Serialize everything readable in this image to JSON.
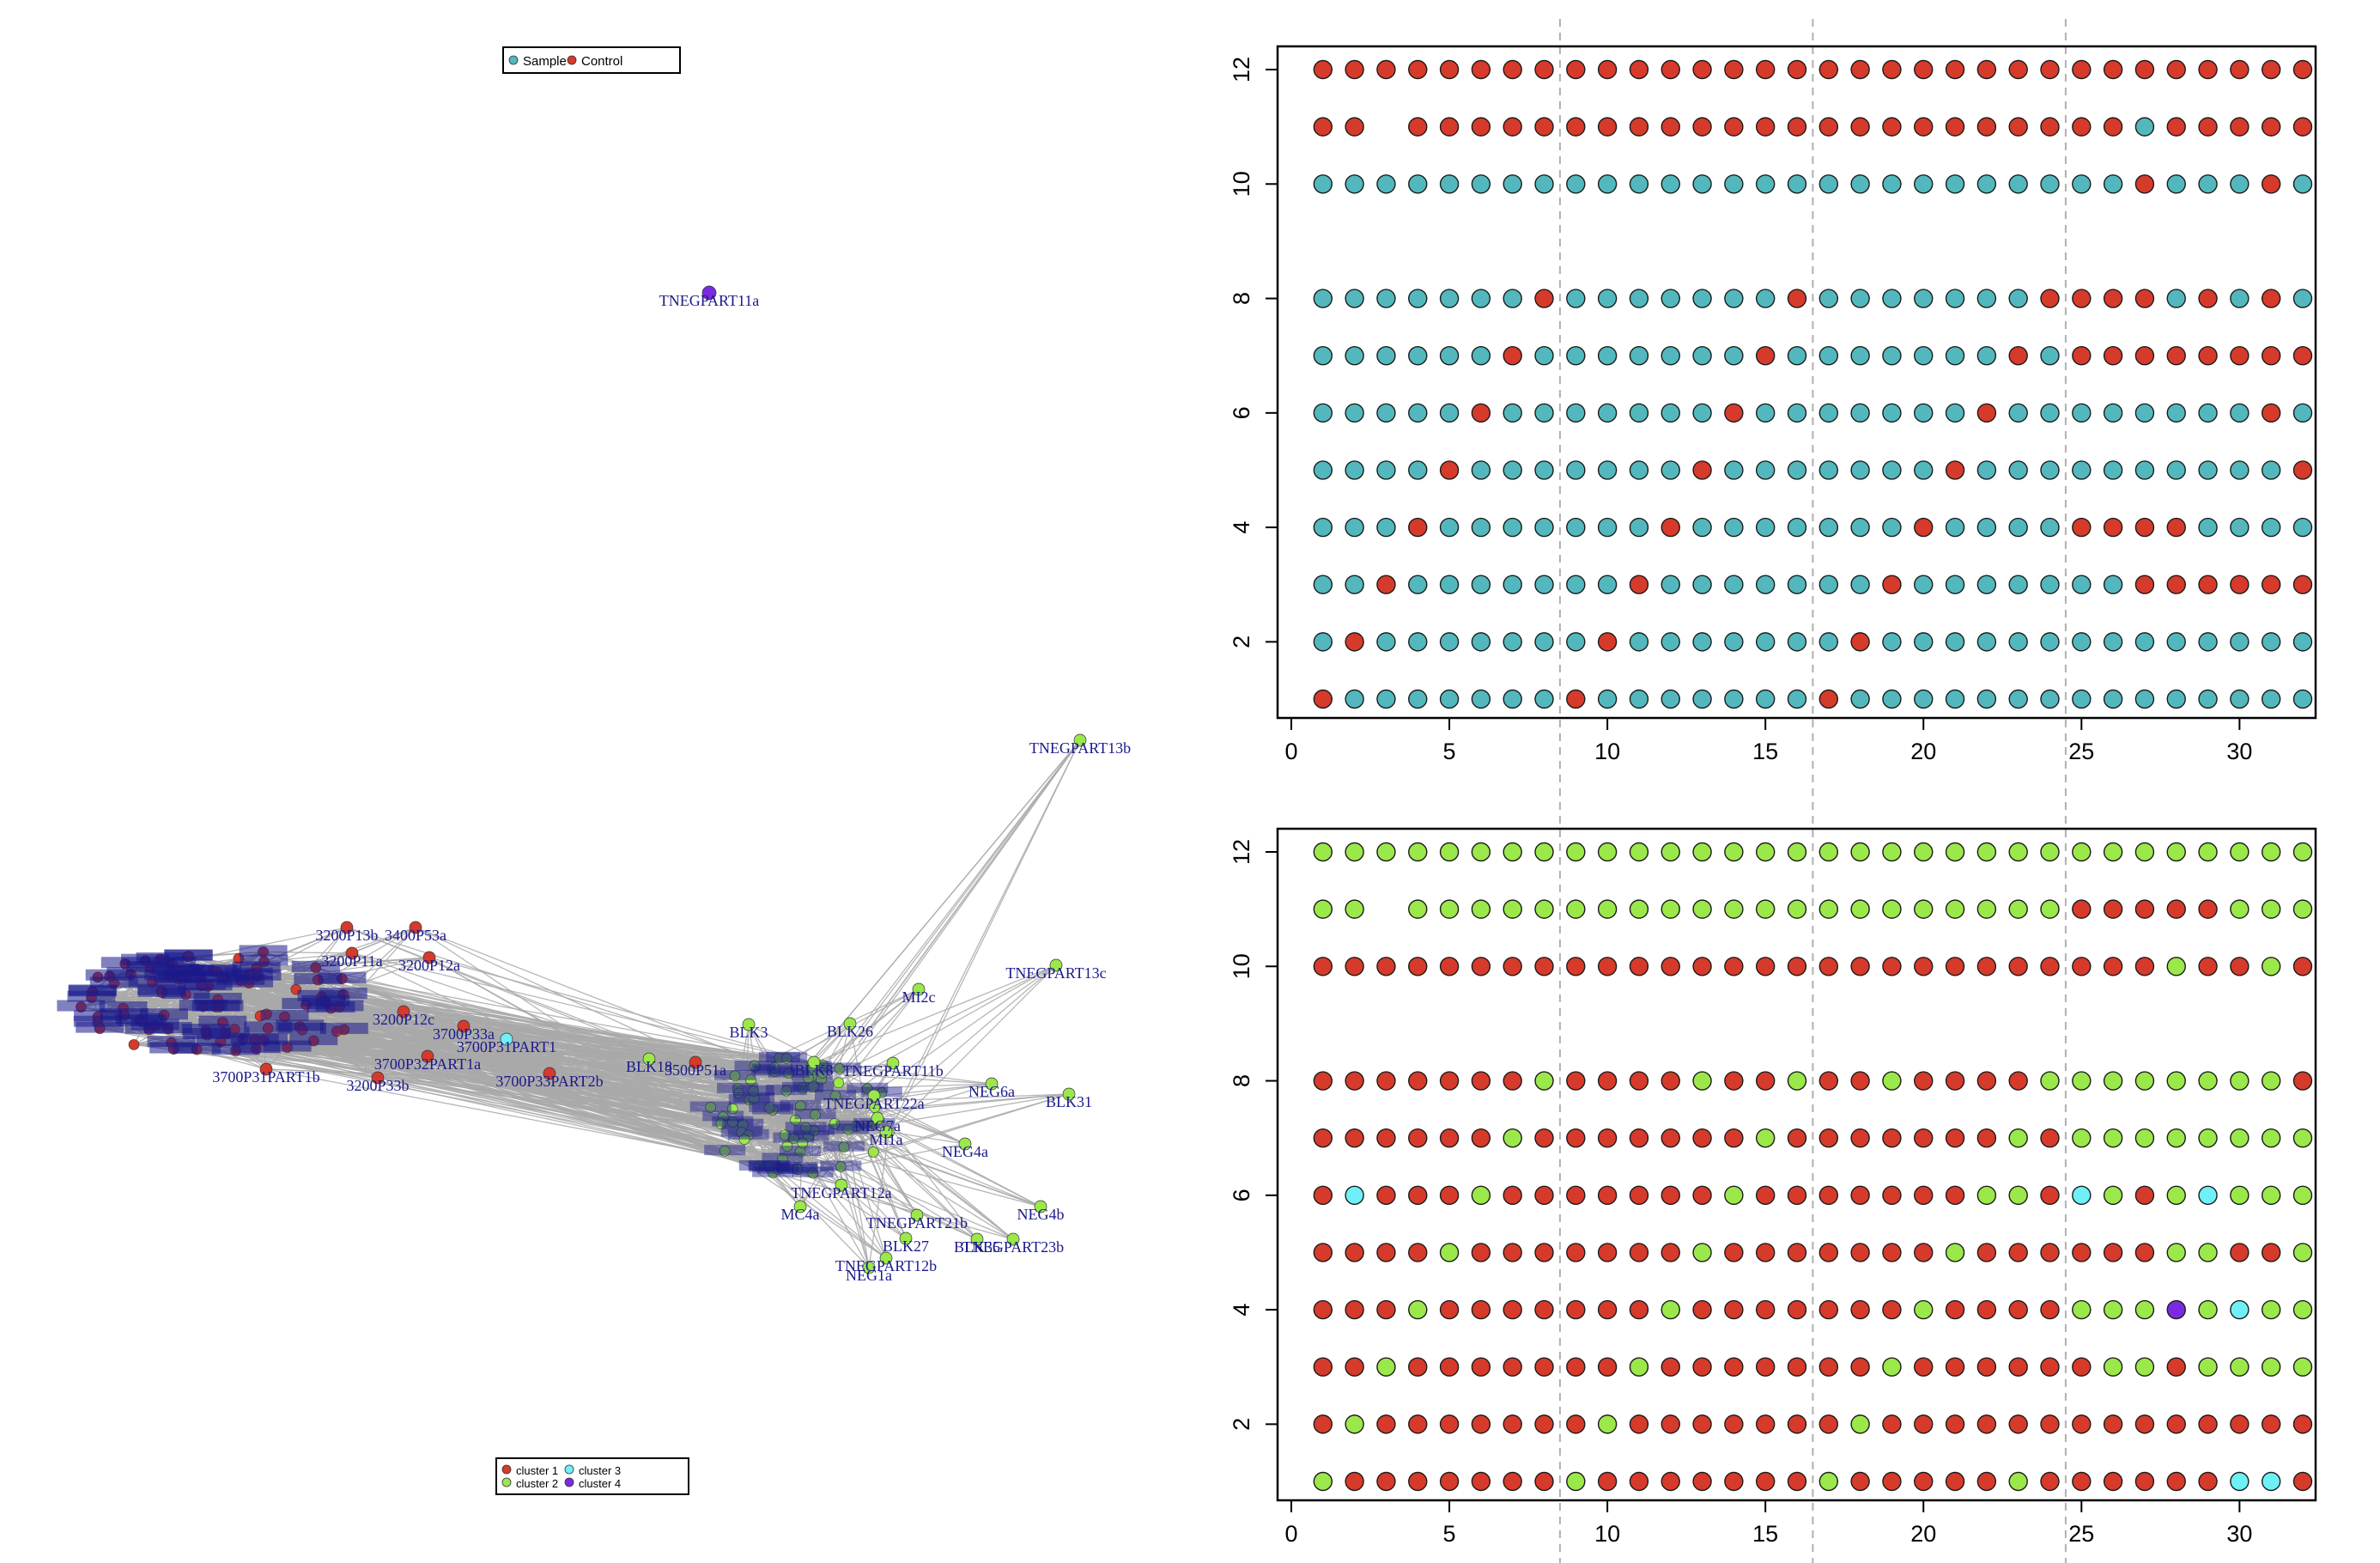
{
  "colors": {
    "sample": "#52b8bd",
    "control": "#d63a2a",
    "cluster1": "#d63a2a",
    "cluster2": "#9be84a",
    "cluster3": "#6ff0f7",
    "cluster4": "#7a2be0",
    "edge": "#a9a9a9",
    "node_label": "#1a1a8c",
    "guide": "#b0b0b0"
  },
  "legends": {
    "top": [
      {
        "label": "Sample",
        "color_key": "sample"
      },
      {
        "label": "Control",
        "color_key": "control"
      }
    ],
    "bottom": [
      {
        "label": "cluster 1",
        "color_key": "cluster1"
      },
      {
        "label": "cluster 2",
        "color_key": "cluster2"
      },
      {
        "label": "cluster 3",
        "color_key": "cluster3"
      },
      {
        "label": "cluster 4",
        "color_key": "cluster4"
      }
    ]
  },
  "chart_data": [
    {
      "type": "network",
      "nodes": [
        {
          "label": "TNEGPART11a",
          "cluster": 4
        },
        {
          "label": "TNEGPART13b",
          "cluster": 2
        },
        {
          "label": "TNEGPART13c",
          "cluster": 2
        },
        {
          "label": "MI2c",
          "cluster": 2
        },
        {
          "label": "BLK3",
          "cluster": 2
        },
        {
          "label": "BLK26",
          "cluster": 2
        },
        {
          "label": "TNEGPART11b",
          "cluster": 2
        },
        {
          "label": "NEG6a",
          "cluster": 2
        },
        {
          "label": "BLK31",
          "cluster": 2
        },
        {
          "label": "NEG4a",
          "cluster": 2
        },
        {
          "label": "NEG4b",
          "cluster": 2
        },
        {
          "label": "TNEGPART21b",
          "cluster": 2
        },
        {
          "label": "BLK27",
          "cluster": 2
        },
        {
          "label": "TNEGPART12b",
          "cluster": 2
        },
        {
          "label": "NEG1a",
          "cluster": 2
        },
        {
          "label": "TNEGPART23b",
          "cluster": 2
        },
        {
          "label": "BLK35",
          "cluster": 2
        },
        {
          "label": "MC4a",
          "cluster": 2
        },
        {
          "label": "BLK18",
          "cluster": 2
        },
        {
          "label": "BLK8",
          "cluster": 2
        },
        {
          "label": "MI1a",
          "cluster": 2
        },
        {
          "label": "NEG7a",
          "cluster": 2
        },
        {
          "label": "TNEGPART22a",
          "cluster": 2
        },
        {
          "label": "TNEGPART12a",
          "cluster": 2
        },
        {
          "label": "3200P13b",
          "cluster": 1
        },
        {
          "label": "3400P53a",
          "cluster": 1
        },
        {
          "label": "3200P12a",
          "cluster": 1
        },
        {
          "label": "3200P11a",
          "cluster": 1
        },
        {
          "label": "3200P12c",
          "cluster": 1
        },
        {
          "label": "3700P33a",
          "cluster": 1
        },
        {
          "label": "3700P32PART1a",
          "cluster": 1
        },
        {
          "label": "3700P31PART1b",
          "cluster": 1
        },
        {
          "label": "3200P33b",
          "cluster": 1
        },
        {
          "label": "3700P31PART1",
          "cluster": 3
        },
        {
          "label": "3700P33PART2b",
          "cluster": 1
        },
        {
          "label": "3500P51a",
          "cluster": 1
        }
      ]
    },
    {
      "type": "scatter",
      "xlim": [
        0,
        32
      ],
      "ylim": [
        1,
        12
      ],
      "xticks": [
        0,
        5,
        10,
        15,
        20,
        25,
        30
      ],
      "yticks": [
        2,
        4,
        6,
        8,
        10,
        12
      ],
      "rows": [
        1,
        2,
        3,
        4,
        5,
        6,
        7,
        8,
        10,
        11,
        12
      ],
      "columns": 32,
      "missing": [
        [
          3,
          11
        ]
      ],
      "legend": [
        "Sample",
        "Control"
      ],
      "control_points": {
        "12": "all",
        "11": [
          1,
          2,
          4,
          5,
          6,
          7,
          8,
          9,
          10,
          11,
          12,
          13,
          14,
          15,
          16,
          17,
          18,
          19,
          20,
          21,
          22,
          23,
          24,
          25,
          26,
          28,
          29,
          30,
          31,
          32
        ],
        "10": [
          27,
          31
        ],
        "8": [
          8,
          16,
          24,
          25,
          26,
          27,
          29,
          31
        ],
        "7": [
          7,
          15,
          23,
          25,
          26,
          27,
          28,
          29,
          30,
          31,
          32
        ],
        "6": [
          6,
          14,
          22,
          31
        ],
        "5": [
          5,
          13,
          21,
          32
        ],
        "4": [
          4,
          12,
          20,
          25,
          26,
          27,
          28
        ],
        "3": [
          3,
          11,
          19,
          27,
          28,
          29,
          30,
          31,
          32
        ],
        "2": [
          2,
          10,
          18
        ],
        "1": [
          1,
          9,
          17
        ]
      }
    },
    {
      "type": "scatter",
      "xlim": [
        0,
        32
      ],
      "ylim": [
        1,
        12
      ],
      "xticks": [
        0,
        5,
        10,
        15,
        20,
        25,
        30
      ],
      "yticks": [
        2,
        4,
        6,
        8,
        10,
        12
      ],
      "rows": [
        1,
        2,
        3,
        4,
        5,
        6,
        7,
        8,
        10,
        11,
        12
      ],
      "columns": 32,
      "missing": [
        [
          3,
          11
        ]
      ],
      "legend": [
        "cluster 1",
        "cluster 2",
        "cluster 3",
        "cluster 4"
      ],
      "cluster_points": {
        "12": {
          "2": "all"
        },
        "11": {
          "1": [
            25,
            26,
            27,
            28,
            29
          ],
          "2": "rest"
        },
        "10": {
          "2": [
            28,
            31
          ],
          "1": "rest"
        },
        "8": {
          "2": [
            8,
            13,
            16,
            19,
            24,
            25,
            26,
            27,
            28,
            29,
            30,
            31
          ],
          "1": "rest"
        },
        "7": {
          "2": [
            7,
            15,
            23,
            25,
            26,
            27,
            28,
            29,
            30,
            31,
            32
          ],
          "1": "rest"
        },
        "6": {
          "3": [
            2,
            25,
            29
          ],
          "2": [
            6,
            14,
            22,
            23,
            26,
            28,
            30,
            31,
            32
          ],
          "1": "rest"
        },
        "5": {
          "2": [
            5,
            13,
            21,
            28,
            29,
            32
          ],
          "1": "rest"
        },
        "4": {
          "2": [
            4,
            12,
            20,
            25,
            26,
            27,
            29,
            31,
            32
          ],
          "4": [
            28
          ],
          "3": [
            30
          ],
          "1": "rest"
        },
        "3": {
          "2": [
            3,
            11,
            19,
            26,
            27,
            29,
            30,
            31,
            32
          ],
          "1": "rest"
        },
        "2": {
          "2": [
            2,
            10,
            18
          ],
          "1": "rest"
        },
        "1": {
          "2": [
            1,
            9,
            17,
            23
          ],
          "3": [
            30,
            31
          ],
          "1": "rest"
        }
      }
    }
  ]
}
